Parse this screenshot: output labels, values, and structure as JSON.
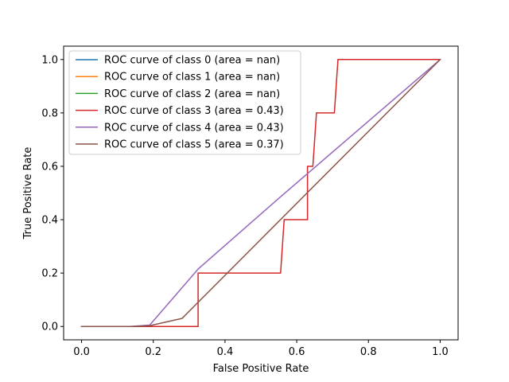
{
  "chart_data": {
    "type": "line",
    "title": "",
    "xlabel": "False Positive Rate",
    "ylabel": "True Positive Rate",
    "xlim": [
      -0.05,
      1.05
    ],
    "ylim": [
      -0.05,
      1.05
    ],
    "xticks": [
      0.0,
      0.2,
      0.4,
      0.6,
      0.8,
      1.0
    ],
    "yticks": [
      0.0,
      0.2,
      0.4,
      0.6,
      0.8,
      1.0
    ],
    "xtick_labels": [
      "0.0",
      "0.2",
      "0.4",
      "0.6",
      "0.8",
      "1.0"
    ],
    "ytick_labels": [
      "0.0",
      "0.2",
      "0.4",
      "0.6",
      "0.8",
      "1.0"
    ],
    "legend_position": "top-left",
    "series": [
      {
        "name": "ROC curve of class 0 (area = nan)",
        "color": "#1f77b4",
        "x": [],
        "y": []
      },
      {
        "name": "ROC curve of class 1 (area = nan)",
        "color": "#ff7f0e",
        "x": [],
        "y": []
      },
      {
        "name": "ROC curve of class 2 (area = nan)",
        "color": "#2ca02c",
        "x": [],
        "y": []
      },
      {
        "name": "ROC curve of class 3 (area = 0.43)",
        "color": "#d62728",
        "x": [
          0.0,
          0.325,
          0.325,
          0.555,
          0.565,
          0.63,
          0.63,
          0.645,
          0.655,
          0.705,
          0.715,
          1.0
        ],
        "y": [
          0.0,
          0.0,
          0.2,
          0.2,
          0.4,
          0.4,
          0.6,
          0.6,
          0.8,
          0.8,
          1.0,
          1.0
        ]
      },
      {
        "name": "ROC curve of class 4 (area = 0.43)",
        "color": "#9467bd",
        "x": [
          0.0,
          0.135,
          0.19,
          0.325,
          0.55,
          1.0
        ],
        "y": [
          0.0,
          0.0,
          0.005,
          0.215,
          0.48,
          1.0
        ]
      },
      {
        "name": "ROC curve of class 5 (area = 0.37)",
        "color": "#8c564b",
        "x": [
          0.0,
          0.14,
          0.19,
          0.28,
          1.0
        ],
        "y": [
          0.0,
          0.0,
          0.003,
          0.03,
          1.0
        ]
      }
    ]
  }
}
